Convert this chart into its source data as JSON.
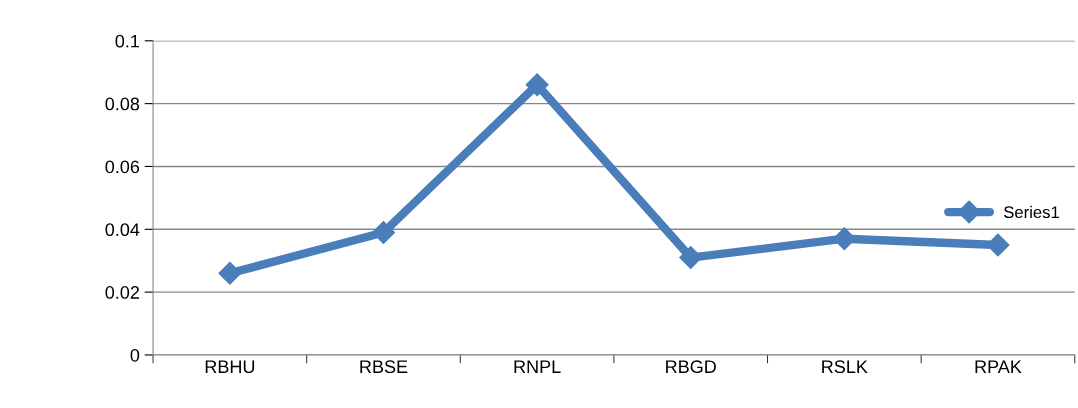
{
  "chart_data": {
    "type": "line",
    "categories": [
      "RBHU",
      "RBSE",
      "RNPL",
      "RBGD",
      "RSLK",
      "RPAK"
    ],
    "series": [
      {
        "name": "Series1",
        "color": "#4a7ebb",
        "values": [
          0.026,
          0.039,
          0.086,
          0.031,
          0.037,
          0.035
        ]
      }
    ],
    "ylim": [
      0,
      0.1
    ],
    "yticks": [
      0,
      0.02,
      0.04,
      0.06,
      0.08,
      0.1
    ],
    "grid": "y",
    "legend": "right",
    "marker": "diamond",
    "line_style": "solid"
  }
}
